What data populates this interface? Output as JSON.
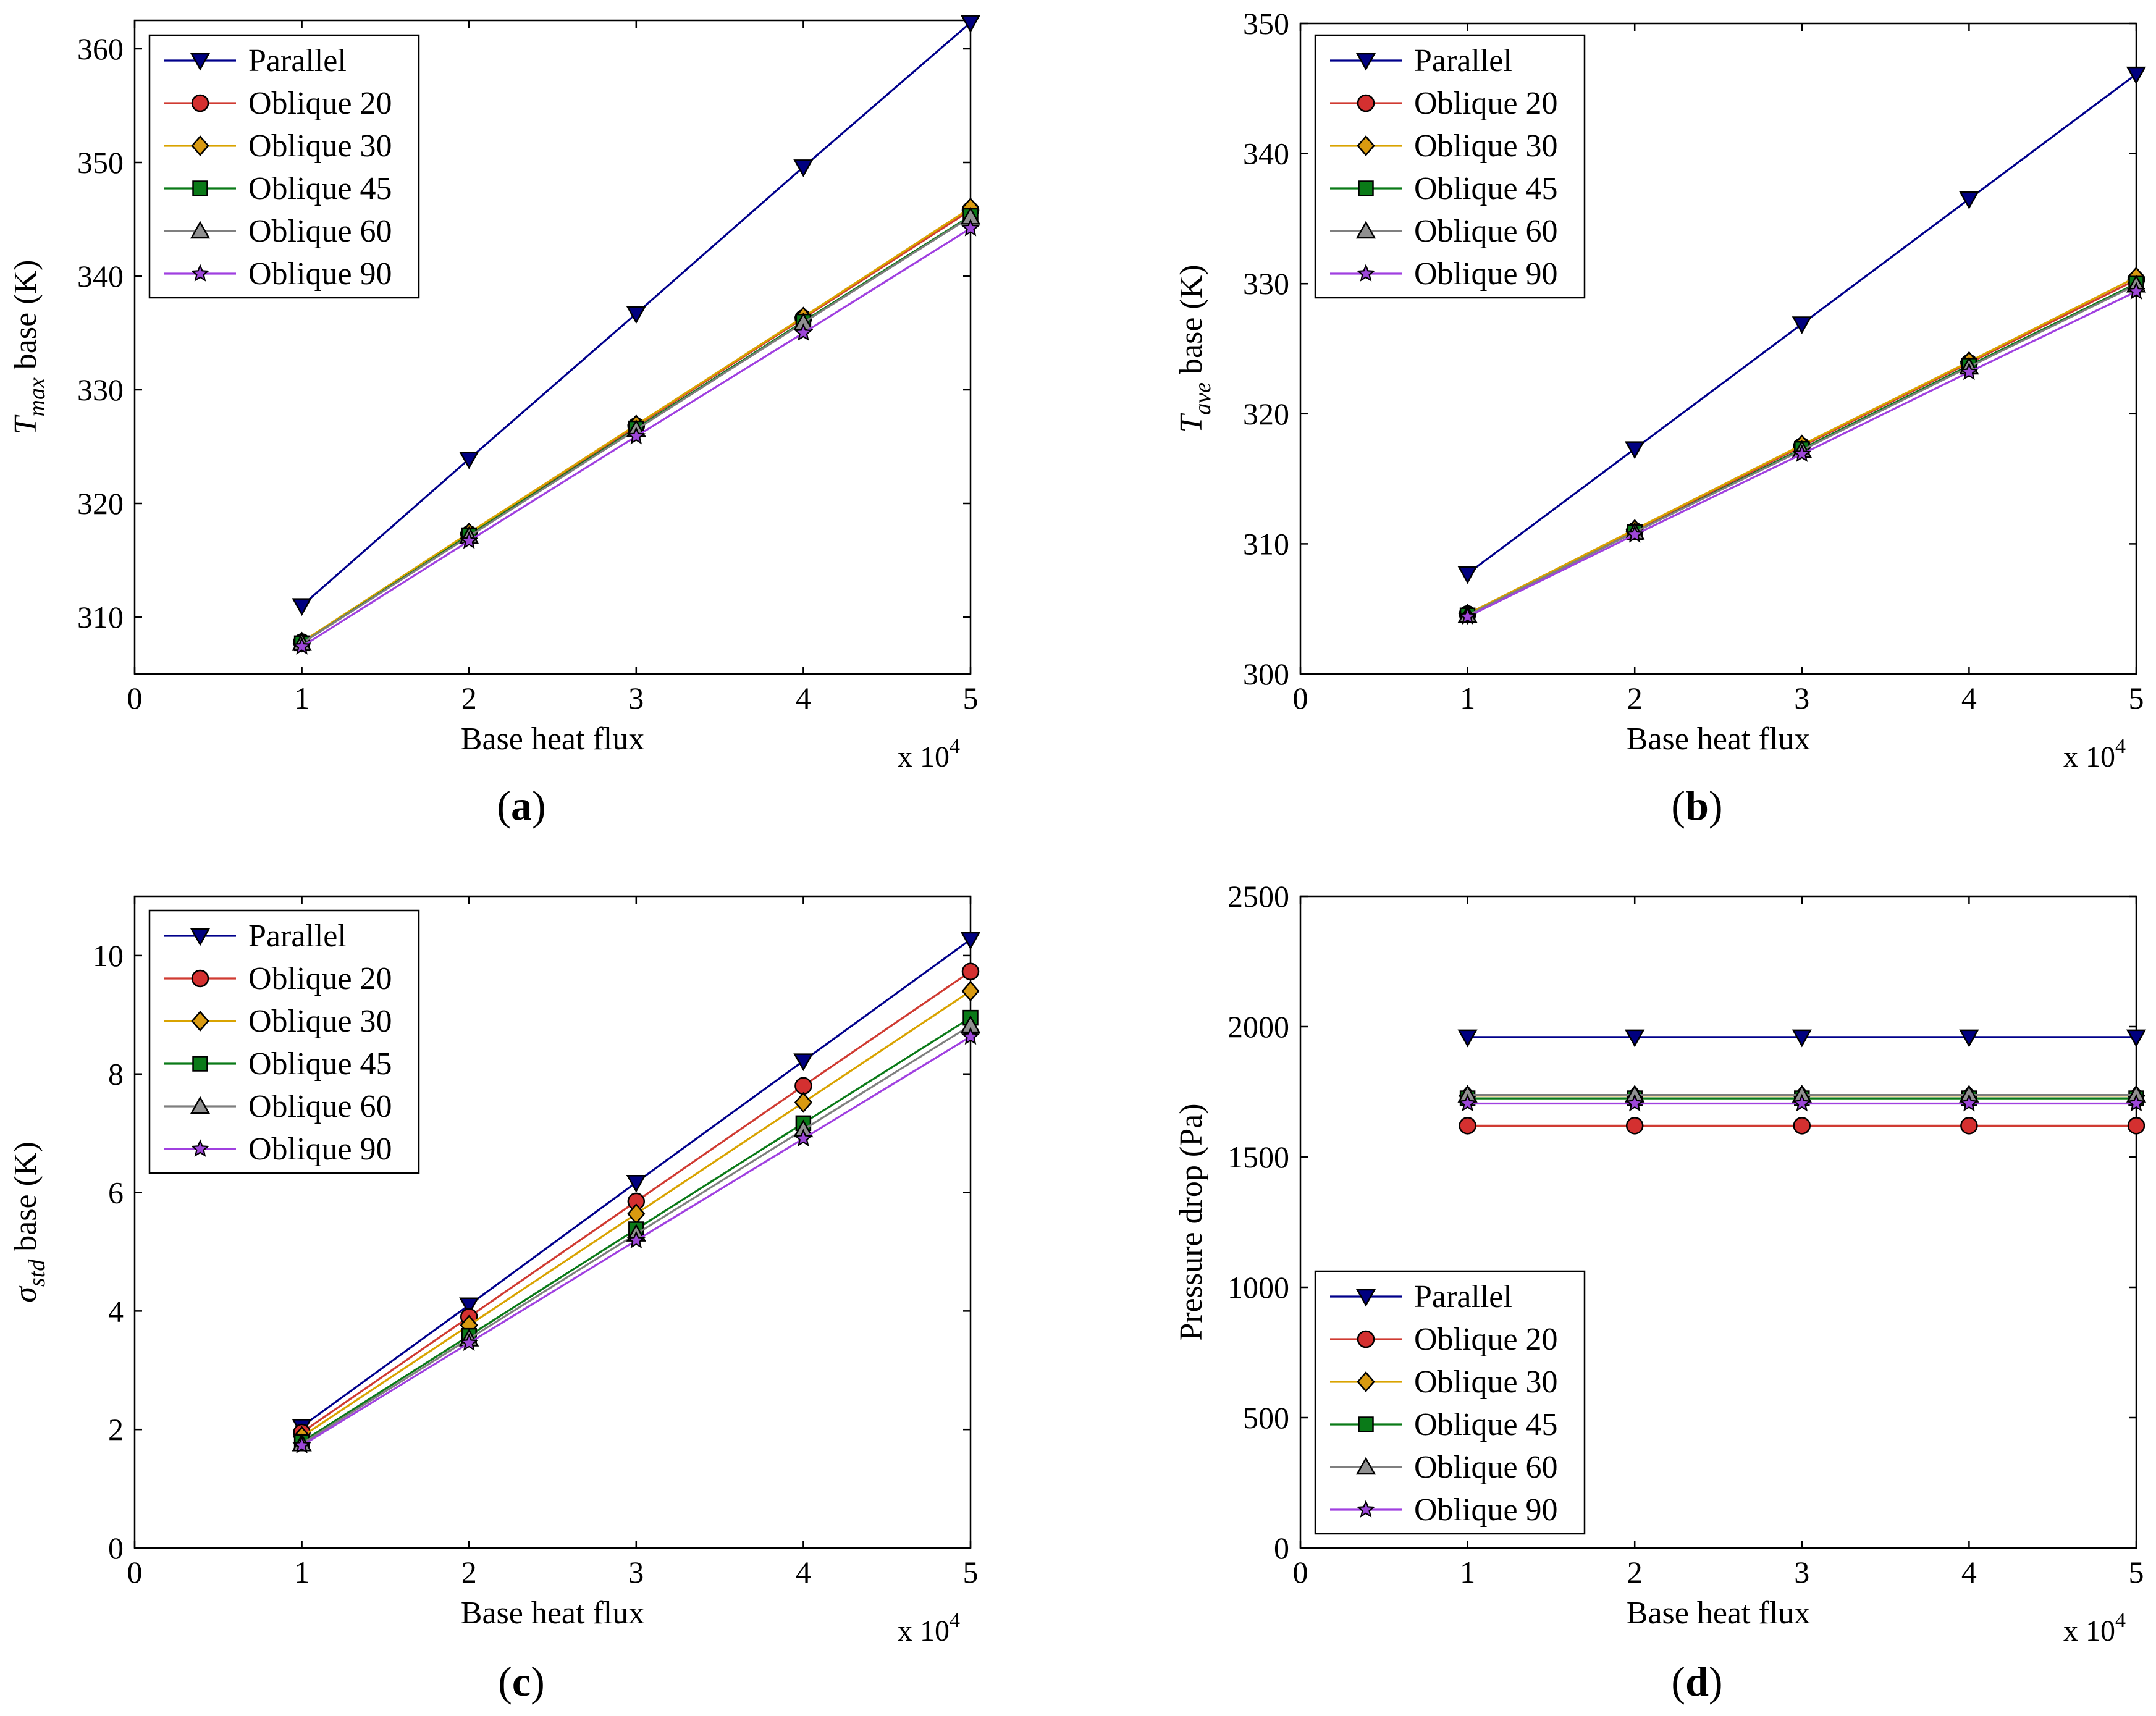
{
  "figure_title": "",
  "colors": {
    "parallel": "#00008b",
    "oblique20": "#d03b32",
    "oblique30": "#d9a300",
    "oblique45": "#0a7a18",
    "oblique60": "#7f7f7f",
    "oblique90": "#a040e0"
  },
  "marker_fill": {
    "parallel": "#000080",
    "oblique20": "#d43030",
    "oblique30": "#d99a10",
    "oblique45": "#0a7a18",
    "oblique60": "#909090",
    "oblique90": "#9d47d8"
  },
  "chart_data": [
    {
      "type": "line",
      "panel": "a",
      "panel_label": "a",
      "xlabel": "Base heat flux",
      "ylabel_symbol": "T",
      "ylabel_sub": "max",
      "ylabel_rest": "base (K)",
      "x_multiplier": "x 10",
      "x_multiplier_exp": "4",
      "xlim": [
        0,
        5
      ],
      "ylim": [
        305,
        362.5
      ],
      "xticks": [
        0,
        1,
        2,
        3,
        4,
        5
      ],
      "yticks": [
        310,
        320,
        330,
        340,
        350,
        360
      ],
      "legend_position": "top-left",
      "x": [
        1,
        2,
        3,
        4,
        5
      ],
      "series": [
        {
          "key": "parallel",
          "name": "Parallel",
          "marker": "triangle-down",
          "values": [
            311.0,
            323.9,
            336.7,
            349.6,
            362.3
          ]
        },
        {
          "key": "oblique20",
          "name": "Oblique 20",
          "marker": "circle",
          "values": [
            307.8,
            317.3,
            326.8,
            336.3,
            345.8
          ]
        },
        {
          "key": "oblique30",
          "name": "Oblique 30",
          "marker": "diamond",
          "values": [
            307.8,
            317.4,
            326.9,
            336.4,
            346.0
          ]
        },
        {
          "key": "oblique45",
          "name": "Oblique 45",
          "marker": "square",
          "values": [
            307.7,
            317.2,
            326.6,
            336.0,
            345.3
          ]
        },
        {
          "key": "oblique60",
          "name": "Oblique 60",
          "marker": "triangle-up",
          "values": [
            307.7,
            317.1,
            326.5,
            335.9,
            345.2
          ]
        },
        {
          "key": "oblique90",
          "name": "Oblique 90",
          "marker": "star",
          "values": [
            307.4,
            316.7,
            325.9,
            335.0,
            344.2
          ]
        }
      ]
    },
    {
      "type": "line",
      "panel": "b",
      "panel_label": "b",
      "xlabel": "Base heat flux",
      "ylabel_symbol": "T",
      "ylabel_sub": "ave",
      "ylabel_rest": "base (K)",
      "x_multiplier": "x 10",
      "x_multiplier_exp": "4",
      "xlim": [
        0,
        5
      ],
      "ylim": [
        300,
        350
      ],
      "xticks": [
        0,
        1,
        2,
        3,
        4,
        5
      ],
      "yticks": [
        300,
        310,
        320,
        330,
        340,
        350
      ],
      "legend_position": "top-left",
      "x": [
        1,
        2,
        3,
        4,
        5
      ],
      "series": [
        {
          "key": "parallel",
          "name": "Parallel",
          "marker": "triangle-down",
          "values": [
            307.7,
            317.3,
            326.9,
            336.5,
            346.1
          ]
        },
        {
          "key": "oblique20",
          "name": "Oblique 20",
          "marker": "circle",
          "values": [
            304.6,
            311.0,
            317.5,
            323.9,
            330.3
          ]
        },
        {
          "key": "oblique30",
          "name": "Oblique 30",
          "marker": "diamond",
          "values": [
            304.6,
            311.1,
            317.6,
            324.0,
            330.5
          ]
        },
        {
          "key": "oblique45",
          "name": "Oblique 45",
          "marker": "square",
          "values": [
            304.5,
            310.9,
            317.3,
            323.7,
            330.0
          ]
        },
        {
          "key": "oblique60",
          "name": "Oblique 60",
          "marker": "triangle-up",
          "values": [
            304.5,
            310.9,
            317.2,
            323.6,
            329.9
          ]
        },
        {
          "key": "oblique90",
          "name": "Oblique 90",
          "marker": "star",
          "values": [
            304.4,
            310.7,
            316.9,
            323.2,
            329.4
          ]
        }
      ]
    },
    {
      "type": "line",
      "panel": "c",
      "panel_label": "c",
      "xlabel": "Base heat flux",
      "ylabel_symbol": "σ",
      "ylabel_sub": "std",
      "ylabel_rest": "base (K)",
      "x_multiplier": "x 10",
      "x_multiplier_exp": "4",
      "xlim": [
        0,
        5
      ],
      "ylim": [
        0,
        11
      ],
      "xticks": [
        0,
        1,
        2,
        3,
        4,
        5
      ],
      "yticks": [
        0,
        2,
        4,
        6,
        8,
        10
      ],
      "legend_position": "top-left",
      "x": [
        1,
        2,
        3,
        4,
        5
      ],
      "series": [
        {
          "key": "parallel",
          "name": "Parallel",
          "marker": "triangle-down",
          "values": [
            2.05,
            4.1,
            6.17,
            8.22,
            10.27
          ]
        },
        {
          "key": "oblique20",
          "name": "Oblique 20",
          "marker": "circle",
          "values": [
            1.95,
            3.9,
            5.85,
            7.8,
            9.73
          ]
        },
        {
          "key": "oblique30",
          "name": "Oblique 30",
          "marker": "diamond",
          "values": [
            1.88,
            3.76,
            5.64,
            7.52,
            9.4
          ]
        },
        {
          "key": "oblique45",
          "name": "Oblique 45",
          "marker": "square",
          "values": [
            1.79,
            3.58,
            5.38,
            7.17,
            8.95
          ]
        },
        {
          "key": "oblique60",
          "name": "Oblique 60",
          "marker": "triangle-up",
          "values": [
            1.76,
            3.53,
            5.3,
            7.06,
            8.82
          ]
        },
        {
          "key": "oblique90",
          "name": "Oblique 90",
          "marker": "star",
          "values": [
            1.73,
            3.46,
            5.19,
            6.91,
            8.63
          ]
        }
      ]
    },
    {
      "type": "line",
      "panel": "d",
      "panel_label": "d",
      "xlabel": "Base heat flux",
      "ylabel_symbol": "",
      "ylabel_sub": "",
      "ylabel_rest": "Pressure drop (Pa)",
      "x_multiplier": "x 10",
      "x_multiplier_exp": "4",
      "xlim": [
        0,
        5
      ],
      "ylim": [
        0,
        2500
      ],
      "xticks": [
        0,
        1,
        2,
        3,
        4,
        5
      ],
      "yticks": [
        0,
        500,
        1000,
        1500,
        2000,
        2500
      ],
      "legend_position": "bottom-left",
      "x": [
        1,
        2,
        3,
        4,
        5
      ],
      "series": [
        {
          "key": "parallel",
          "name": "Parallel",
          "marker": "triangle-down",
          "values": [
            1960,
            1960,
            1960,
            1960,
            1960
          ]
        },
        {
          "key": "oblique20",
          "name": "Oblique 20",
          "marker": "circle",
          "values": [
            1620,
            1620,
            1620,
            1620,
            1620
          ]
        },
        {
          "key": "oblique30",
          "name": "Oblique 30",
          "marker": "diamond",
          "values": [
            1735,
            1735,
            1735,
            1735,
            1735
          ]
        },
        {
          "key": "oblique45",
          "name": "Oblique 45",
          "marker": "square",
          "values": [
            1725,
            1725,
            1725,
            1725,
            1725
          ]
        },
        {
          "key": "oblique60",
          "name": "Oblique 60",
          "marker": "triangle-up",
          "values": [
            1738,
            1738,
            1738,
            1738,
            1738
          ]
        },
        {
          "key": "oblique90",
          "name": "Oblique 90",
          "marker": "star",
          "values": [
            1705,
            1705,
            1705,
            1705,
            1705
          ]
        }
      ]
    }
  ]
}
